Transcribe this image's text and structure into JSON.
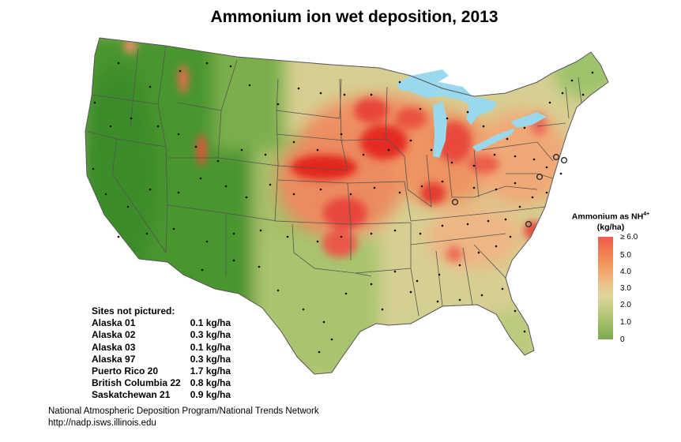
{
  "title": "Ammonium ion wet deposition, 2013",
  "legend": {
    "title_main": "Ammonium as NH",
    "title_sub": "4",
    "title_sup": "+",
    "units": "(kg/ha)",
    "ticks": [
      "≥ 6.0",
      "5.0",
      "4.0",
      "3.0",
      "2.0",
      "1.0",
      "0"
    ],
    "colors": [
      "#ee5a50",
      "#f0784e",
      "#f29a5e",
      "#eebc85",
      "#ded59c",
      "#c4cc84",
      "#9fbc66",
      "#7ba94e"
    ]
  },
  "sites_not_pictured": {
    "heading": "Sites not pictured:",
    "rows": [
      {
        "site": "Alaska 01",
        "value": "0.1 kg/ha"
      },
      {
        "site": "Alaska 02",
        "value": "0.3 kg/ha"
      },
      {
        "site": "Alaska 03",
        "value": "0.1 kg/ha"
      },
      {
        "site": "Alaska 97",
        "value": "0.3 kg/ha"
      },
      {
        "site": "Puerto Rico 20",
        "value": "1.7 kg/ha"
      },
      {
        "site": "British Columbia 22",
        "value": "0.8 kg/ha"
      },
      {
        "site": "Saskatchewan 21",
        "value": "0.9 kg/ha"
      }
    ]
  },
  "footer": {
    "line1": "National Atmospheric Deposition Program/National Trends Network",
    "line2": "http://nadp.isws.illinois.edu"
  },
  "colors": {
    "water": "#9ad8ee",
    "low": "#3e8e2c",
    "high": "#e51c1c",
    "border": "#555555"
  }
}
